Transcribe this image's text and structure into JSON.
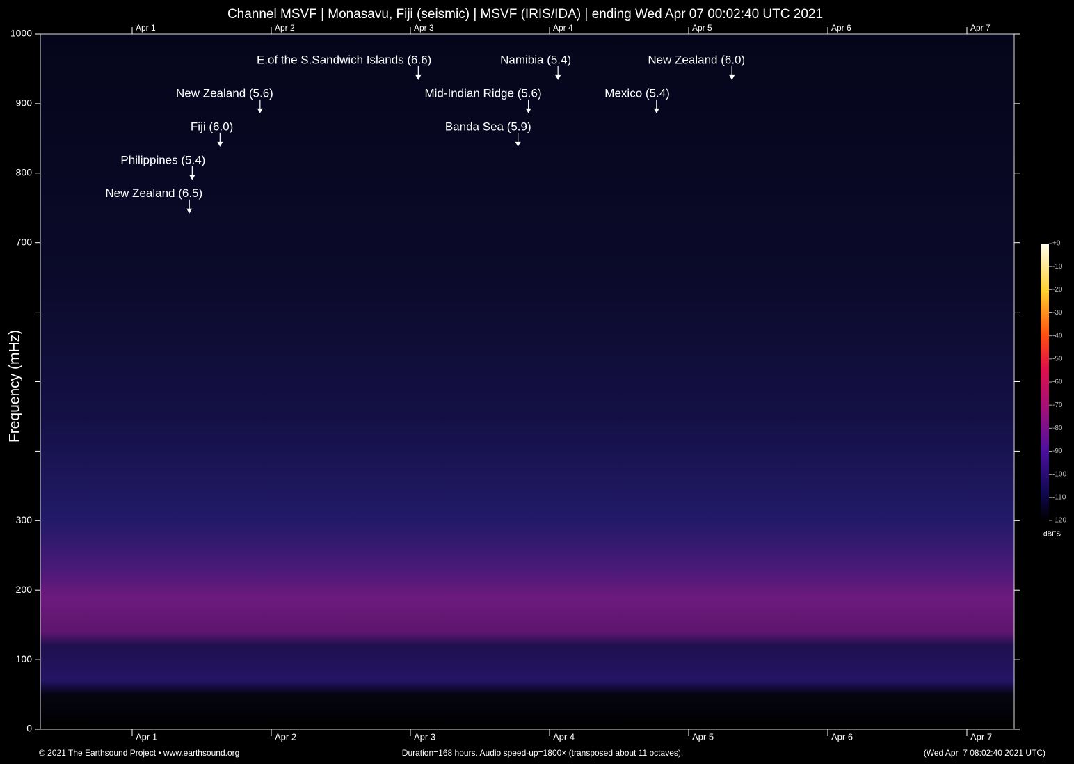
{
  "chart_data": {
    "type": "spectrogram",
    "title": "Channel MSVF | Monasavu, Fiji (seismic) | MSVF (IRIS/IDA) | ending Wed Apr 07 00:02:40 UTC 2021",
    "y_label": "Frequency (mHz)",
    "ylim": [
      0,
      1000
    ],
    "yticks": [
      0,
      100,
      200,
      300,
      700,
      800,
      900,
      1000
    ],
    "yticks_minor": [
      400,
      500,
      600
    ],
    "xlim": [
      0,
      168
    ],
    "xticks": [
      {
        "value": 15.84,
        "label": "Apr 1"
      },
      {
        "value": 39.84,
        "label": "Apr 2"
      },
      {
        "value": 63.84,
        "label": "Apr 3"
      },
      {
        "value": 87.84,
        "label": "Apr 4"
      },
      {
        "value": 111.84,
        "label": "Apr 5"
      },
      {
        "value": 135.84,
        "label": "Apr 6"
      },
      {
        "value": 159.84,
        "label": "Apr 7"
      }
    ],
    "annotations": [
      {
        "label": "New Zealand (6.5)",
        "x": 25.7,
        "y": 742
      },
      {
        "label": "Philippines (5.4)",
        "x": 26.2,
        "y": 790
      },
      {
        "label": "Fiji (6.0)",
        "x": 31.0,
        "y": 838
      },
      {
        "label": "New Zealand (5.6)",
        "x": 37.9,
        "y": 886
      },
      {
        "label": "E.of the S.Sandwich Islands (6.6)",
        "x": 65.2,
        "y": 934
      },
      {
        "label": "Mid-Indian Ridge (5.6)",
        "x": 84.2,
        "y": 886
      },
      {
        "label": "Banda Sea (5.9)",
        "x": 82.4,
        "y": 838
      },
      {
        "label": "Namibia (5.4)",
        "x": 89.3,
        "y": 934
      },
      {
        "label": "Mexico (5.4)",
        "x": 106.3,
        "y": 886
      },
      {
        "label": "New Zealand (6.0)",
        "x": 119.3,
        "y": 934
      }
    ],
    "colorbar": {
      "label": "dBFS",
      "lim": [
        -120,
        0
      ],
      "ticks": [
        {
          "value": 0,
          "label": "+0"
        },
        -10,
        -20,
        -30,
        -40,
        -50,
        -60,
        -70,
        -80,
        -90,
        -100,
        -110,
        -120
      ]
    },
    "credit": "© 2021 The Earthsound Project • www.earthsound.org",
    "note": "Duration=168 hours. Audio speed-up=1800× (transposed about 11 octaves).",
    "timestamp": "(Wed Apr  7 08:02:40 2021 UTC)"
  }
}
